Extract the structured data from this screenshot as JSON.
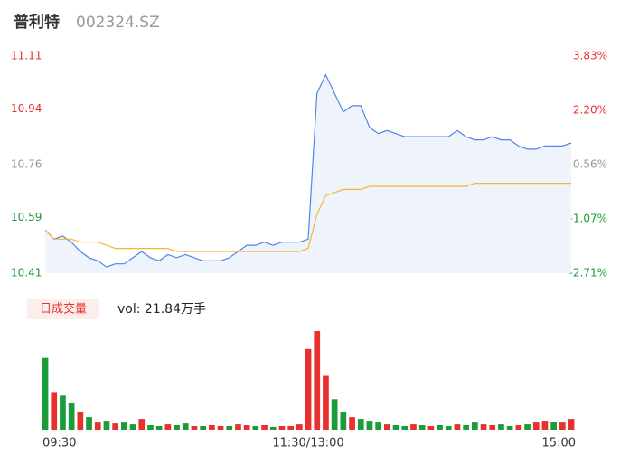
{
  "chart_data": [
    {
      "type": "line",
      "title": "普利特",
      "subtitle": "002324.SZ",
      "x": [
        0,
        4,
        8,
        12,
        16,
        20,
        24,
        28,
        32,
        36,
        40,
        44,
        48,
        52,
        56,
        60,
        64,
        68,
        72,
        76,
        80,
        84,
        88,
        92,
        96,
        100,
        104,
        108,
        112,
        116,
        120,
        124,
        128,
        132,
        136,
        140,
        144,
        148,
        152,
        156,
        160,
        164,
        168,
        172,
        176,
        180,
        184,
        188,
        192,
        196,
        200,
        204,
        208,
        212,
        216,
        220,
        224,
        228,
        232,
        236,
        240
      ],
      "xlim": [
        0,
        240
      ],
      "xticks": [
        {
          "value": 0,
          "label": "09:30"
        },
        {
          "value": 120,
          "label": "11:30/13:00"
        },
        {
          "value": 240,
          "label": "15:00"
        }
      ],
      "series": [
        {
          "name": "price",
          "color": "#4f86e8",
          "values": [
            10.55,
            10.52,
            10.53,
            10.51,
            10.48,
            10.46,
            10.45,
            10.43,
            10.44,
            10.44,
            10.46,
            10.48,
            10.46,
            10.45,
            10.47,
            10.46,
            10.47,
            10.46,
            10.45,
            10.45,
            10.45,
            10.46,
            10.48,
            10.5,
            10.5,
            10.51,
            10.5,
            10.51,
            10.51,
            10.51,
            10.52,
            10.99,
            11.05,
            10.99,
            10.93,
            10.95,
            10.95,
            10.88,
            10.86,
            10.87,
            10.86,
            10.85,
            10.85,
            10.85,
            10.85,
            10.85,
            10.85,
            10.87,
            10.85,
            10.84,
            10.84,
            10.85,
            10.84,
            10.84,
            10.82,
            10.81,
            10.81,
            10.82,
            10.82,
            10.82,
            10.83
          ]
        },
        {
          "name": "average",
          "color": "#f5b731",
          "values": [
            10.55,
            10.52,
            10.52,
            10.52,
            10.51,
            10.51,
            10.51,
            10.5,
            10.49,
            10.49,
            10.49,
            10.49,
            10.49,
            10.49,
            10.49,
            10.48,
            10.48,
            10.48,
            10.48,
            10.48,
            10.48,
            10.48,
            10.48,
            10.48,
            10.48,
            10.48,
            10.48,
            10.48,
            10.48,
            10.48,
            10.49,
            10.6,
            10.66,
            10.67,
            10.68,
            10.68,
            10.68,
            10.69,
            10.69,
            10.69,
            10.69,
            10.69,
            10.69,
            10.69,
            10.69,
            10.69,
            10.69,
            10.69,
            10.69,
            10.7,
            10.7,
            10.7,
            10.7,
            10.7,
            10.7,
            10.7,
            10.7,
            10.7,
            10.7,
            10.7,
            10.7
          ]
        }
      ],
      "ylim": [
        10.41,
        11.11
      ],
      "yticks": [
        10.41,
        10.59,
        10.76,
        10.94,
        11.11
      ],
      "y2lim": [
        -2.71,
        3.83
      ],
      "y2ticks": [
        {
          "value": -2.71,
          "label": "-2.71%"
        },
        {
          "value": -1.07,
          "label": "-1.07%"
        },
        {
          "value": 0.56,
          "label": "0.56%"
        },
        {
          "value": 2.2,
          "label": "2.20%"
        },
        {
          "value": 3.83,
          "label": "3.83%"
        }
      ],
      "tick_colors": [
        "#1a9c3a",
        "#1a9c3a",
        "#999999",
        "#e8312f",
        "#e8312f"
      ]
    },
    {
      "type": "bar",
      "title": "日成交量",
      "subtitle": "vol: 21.84万手",
      "values": [
        80,
        42,
        38,
        30,
        20,
        14,
        8,
        10,
        7,
        8,
        6,
        12,
        5,
        4,
        6,
        5,
        7,
        4,
        4,
        5,
        4,
        4,
        6,
        5,
        4,
        5,
        3,
        4,
        4,
        6,
        90,
        110,
        60,
        34,
        20,
        14,
        12,
        10,
        8,
        6,
        5,
        4,
        6,
        5,
        4,
        5,
        4,
        6,
        5,
        8,
        6,
        5,
        6,
        4,
        5,
        6,
        8,
        10,
        9,
        8,
        12
      ],
      "colors": [
        "#1a9c3a",
        "#e8312f",
        "#1a9c3a",
        "#1a9c3a",
        "#e8312f",
        "#1a9c3a",
        "#e8312f",
        "#1a9c3a",
        "#e8312f",
        "#1a9c3a",
        "#1a9c3a",
        "#e8312f",
        "#1a9c3a",
        "#1a9c3a",
        "#e8312f",
        "#1a9c3a",
        "#1a9c3a",
        "#e8312f",
        "#1a9c3a",
        "#e8312f",
        "#e8312f",
        "#1a9c3a",
        "#e8312f",
        "#e8312f",
        "#1a9c3a",
        "#e8312f",
        "#1a9c3a",
        "#e8312f",
        "#e8312f",
        "#e8312f",
        "#e8312f",
        "#e8312f",
        "#e8312f",
        "#1a9c3a",
        "#1a9c3a",
        "#e8312f",
        "#1a9c3a",
        "#1a9c3a",
        "#1a9c3a",
        "#e8312f",
        "#1a9c3a",
        "#1a9c3a",
        "#e8312f",
        "#1a9c3a",
        "#e8312f",
        "#1a9c3a",
        "#1a9c3a",
        "#e8312f",
        "#1a9c3a",
        "#1a9c3a",
        "#e8312f",
        "#e8312f",
        "#1a9c3a",
        "#1a9c3a",
        "#e8312f",
        "#1a9c3a",
        "#e8312f",
        "#e8312f",
        "#1a9c3a",
        "#e8312f",
        "#e8312f"
      ]
    }
  ]
}
